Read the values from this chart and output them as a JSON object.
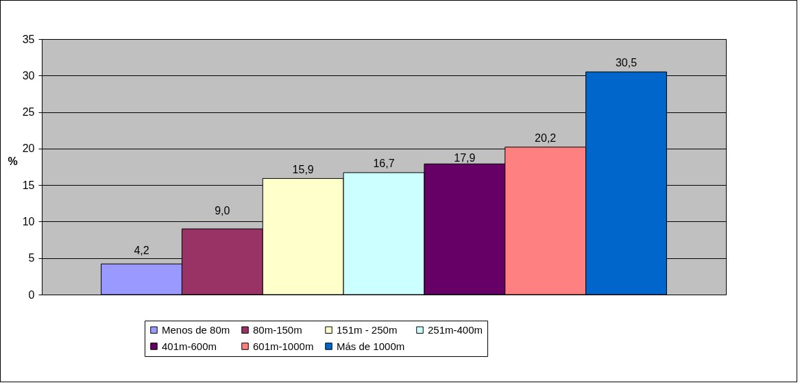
{
  "chart_data": {
    "type": "bar",
    "categories": [
      null
    ],
    "ylabel": "%",
    "ylim": [
      0,
      35
    ],
    "yticks": [
      0,
      5,
      10,
      15,
      20,
      25,
      30,
      35
    ],
    "grid": "y",
    "legend": "bottom",
    "tick_labels": "y",
    "series": [
      {
        "name": "Menos de 80m",
        "color": "#9999ff",
        "values": [
          4.2
        ],
        "value_labels": [
          "4,2"
        ]
      },
      {
        "name": "80m-150m",
        "color": "#993366",
        "values": [
          9.0
        ],
        "value_labels": [
          "9,0"
        ]
      },
      {
        "name": "151m - 250m",
        "color": "#ffffcc",
        "values": [
          15.9
        ],
        "value_labels": [
          "15,9"
        ]
      },
      {
        "name": "251m-400m",
        "color": "#ccffff",
        "values": [
          16.7
        ],
        "value_labels": [
          "16,7"
        ]
      },
      {
        "name": "401m-600m",
        "color": "#660066",
        "values": [
          17.9
        ],
        "value_labels": [
          "17,9"
        ]
      },
      {
        "name": "601m-1000m",
        "color": "#ff8080",
        "values": [
          20.2
        ],
        "value_labels": [
          "20,2"
        ]
      },
      {
        "name": "Más de 1000m",
        "color": "#0066cc",
        "values": [
          30.5
        ],
        "value_labels": [
          "30,5"
        ]
      }
    ]
  }
}
